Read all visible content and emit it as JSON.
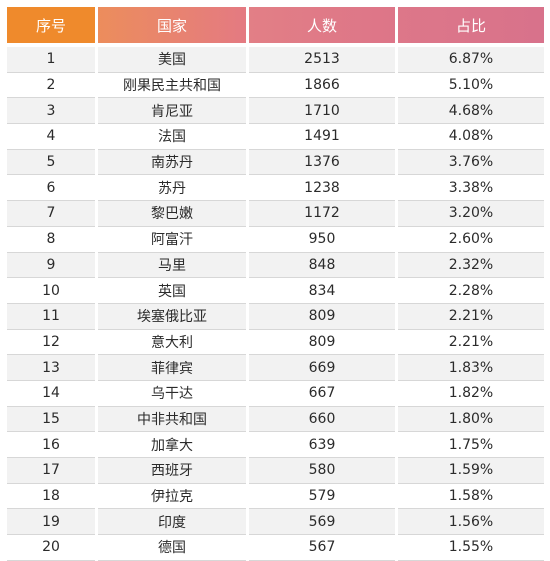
{
  "table": {
    "headers": {
      "index": "序号",
      "country": "国家",
      "count": "人数",
      "share": "占比"
    },
    "colors": {
      "header_index": "#ef8a2c",
      "header_other": "#e07a86",
      "row_alt": "#f2f2f2"
    },
    "rows": [
      {
        "index": "1",
        "country": "美国",
        "count": "2513",
        "share": "6.87%"
      },
      {
        "index": "2",
        "country": "刚果民主共和国",
        "count": "1866",
        "share": "5.10%"
      },
      {
        "index": "3",
        "country": "肯尼亚",
        "count": "1710",
        "share": "4.68%"
      },
      {
        "index": "4",
        "country": "法国",
        "count": "1491",
        "share": "4.08%"
      },
      {
        "index": "5",
        "country": "南苏丹",
        "count": "1376",
        "share": "3.76%"
      },
      {
        "index": "6",
        "country": "苏丹",
        "count": "1238",
        "share": "3.38%"
      },
      {
        "index": "7",
        "country": "黎巴嫩",
        "count": "1172",
        "share": "3.20%"
      },
      {
        "index": "8",
        "country": "阿富汗",
        "count": "950",
        "share": "2.60%"
      },
      {
        "index": "9",
        "country": "马里",
        "count": "848",
        "share": "2.32%"
      },
      {
        "index": "10",
        "country": "英国",
        "count": "834",
        "share": "2.28%"
      },
      {
        "index": "11",
        "country": "埃塞俄比亚",
        "count": "809",
        "share": "2.21%"
      },
      {
        "index": "12",
        "country": "意大利",
        "count": "809",
        "share": "2.21%"
      },
      {
        "index": "13",
        "country": "菲律宾",
        "count": "669",
        "share": "1.83%"
      },
      {
        "index": "14",
        "country": "乌干达",
        "count": "667",
        "share": "1.82%"
      },
      {
        "index": "15",
        "country": "中非共和国",
        "count": "660",
        "share": "1.80%"
      },
      {
        "index": "16",
        "country": "加拿大",
        "count": "639",
        "share": "1.75%"
      },
      {
        "index": "17",
        "country": "西班牙",
        "count": "580",
        "share": "1.59%"
      },
      {
        "index": "18",
        "country": "伊拉克",
        "count": "579",
        "share": "1.58%"
      },
      {
        "index": "19",
        "country": "印度",
        "count": "569",
        "share": "1.56%"
      },
      {
        "index": "20",
        "country": "德国",
        "count": "567",
        "share": "1.55%"
      }
    ]
  }
}
